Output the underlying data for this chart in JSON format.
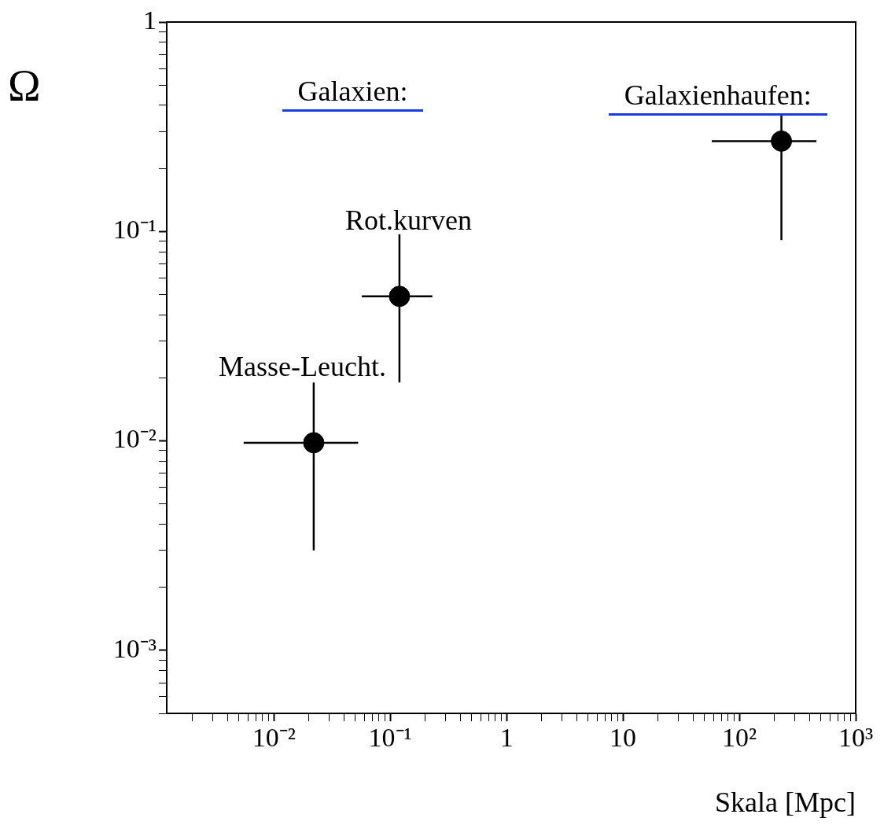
{
  "chart_data": {
    "type": "scatter",
    "xlabel": "Skala [Mpc]",
    "ylabel": "Ω",
    "log": "xy",
    "x": [
      0.022,
      0.12,
      230
    ],
    "series": [
      {
        "color": "#000000",
        "values": [
          0.0098,
          0.049,
          0.27
        ],
        "errors": [
          [
            0.003,
            0.019
          ],
          [
            0.019,
            0.097
          ],
          [
            0.091,
            0.36
          ]
        ],
        "xerrors": [
          [
            0.0055,
            0.053
          ],
          [
            0.057,
            0.23
          ],
          [
            58,
            460
          ]
        ]
      }
    ],
    "marker": "circle",
    "xlim": [
      0.0012,
      1000
    ],
    "ylim": [
      0.0005,
      1
    ],
    "xticks": [
      {
        "value": 0.002,
        "label": null
      },
      {
        "value": 0.003,
        "label": null
      },
      {
        "value": 0.004,
        "label": null
      },
      {
        "value": 0.005,
        "label": null
      },
      {
        "value": 0.006,
        "label": null
      },
      {
        "value": 0.007,
        "label": null
      },
      {
        "value": 0.008,
        "label": null
      },
      {
        "value": 0.009,
        "label": null
      },
      {
        "value": 0.01,
        "label": "10⁻²"
      },
      {
        "value": 0.02,
        "label": null
      },
      {
        "value": 0.03,
        "label": null
      },
      {
        "value": 0.04,
        "label": null
      },
      {
        "value": 0.05,
        "label": null
      },
      {
        "value": 0.06,
        "label": null
      },
      {
        "value": 0.07,
        "label": null
      },
      {
        "value": 0.08,
        "label": null
      },
      {
        "value": 0.09,
        "label": null
      },
      {
        "value": 0.1,
        "label": "10⁻¹"
      },
      {
        "value": 0.2,
        "label": null
      },
      {
        "value": 0.3,
        "label": null
      },
      {
        "value": 0.4,
        "label": null
      },
      {
        "value": 0.5,
        "label": null
      },
      {
        "value": 0.6,
        "label": null
      },
      {
        "value": 0.7,
        "label": null
      },
      {
        "value": 0.8,
        "label": null
      },
      {
        "value": 0.9,
        "label": null
      },
      1,
      {
        "value": 2,
        "label": null
      },
      {
        "value": 3,
        "label": null
      },
      {
        "value": 4,
        "label": null
      },
      {
        "value": 5,
        "label": null
      },
      {
        "value": 6,
        "label": null
      },
      {
        "value": 7,
        "label": null
      },
      {
        "value": 8,
        "label": null
      },
      {
        "value": 9,
        "label": null
      },
      10,
      {
        "value": 20,
        "label": null
      },
      {
        "value": 30,
        "label": null
      },
      {
        "value": 40,
        "label": null
      },
      {
        "value": 50,
        "label": null
      },
      {
        "value": 60,
        "label": null
      },
      {
        "value": 70,
        "label": null
      },
      {
        "value": 80,
        "label": null
      },
      {
        "value": 90,
        "label": null
      },
      {
        "value": 100,
        "label": "10²"
      },
      {
        "value": 200,
        "label": null
      },
      {
        "value": 300,
        "label": null
      },
      {
        "value": 400,
        "label": null
      },
      {
        "value": 500,
        "label": null
      },
      {
        "value": 600,
        "label": null
      },
      {
        "value": 700,
        "label": null
      },
      {
        "value": 800,
        "label": null
      },
      {
        "value": 900,
        "label": null
      },
      {
        "value": 1000,
        "label": "10³"
      }
    ],
    "yticks": [
      {
        "value": 0.0005,
        "label": null
      },
      {
        "value": 0.0006,
        "label": null
      },
      {
        "value": 0.0007,
        "label": null
      },
      {
        "value": 0.0008,
        "label": null
      },
      {
        "value": 0.0009,
        "label": null
      },
      {
        "value": 0.001,
        "label": "10⁻³"
      },
      {
        "value": 0.002,
        "label": null
      },
      {
        "value": 0.003,
        "label": null
      },
      {
        "value": 0.004,
        "label": null
      },
      {
        "value": 0.005,
        "label": null
      },
      {
        "value": 0.006,
        "label": null
      },
      {
        "value": 0.007,
        "label": null
      },
      {
        "value": 0.008,
        "label": null
      },
      {
        "value": 0.009,
        "label": null
      },
      {
        "value": 0.01,
        "label": "10⁻²"
      },
      {
        "value": 0.02,
        "label": null
      },
      {
        "value": 0.03,
        "label": null
      },
      {
        "value": 0.04,
        "label": null
      },
      {
        "value": 0.05,
        "label": null
      },
      {
        "value": 0.06,
        "label": null
      },
      {
        "value": 0.07,
        "label": null
      },
      {
        "value": 0.08,
        "label": null
      },
      {
        "value": 0.09,
        "label": null
      },
      {
        "value": 0.1,
        "label": "10⁻¹"
      },
      {
        "value": 0.2,
        "label": null
      },
      {
        "value": 0.3,
        "label": null
      },
      {
        "value": 0.4,
        "label": null
      },
      {
        "value": 0.5,
        "label": null
      },
      {
        "value": 0.6,
        "label": null
      },
      {
        "value": 0.7,
        "label": null
      },
      {
        "value": 0.8,
        "label": null
      },
      {
        "value": 0.9,
        "label": null
      },
      1
    ],
    "grid": false,
    "legend": false,
    "annotations": [
      {
        "text": "Masse-Leucht.",
        "x": 0.022,
        "y": 0.0098
      },
      {
        "text": "Rot.kurven",
        "x": 0.12,
        "y": 0.049
      },
      "Galaxien:",
      "Galaxienhaufen:"
    ]
  }
}
